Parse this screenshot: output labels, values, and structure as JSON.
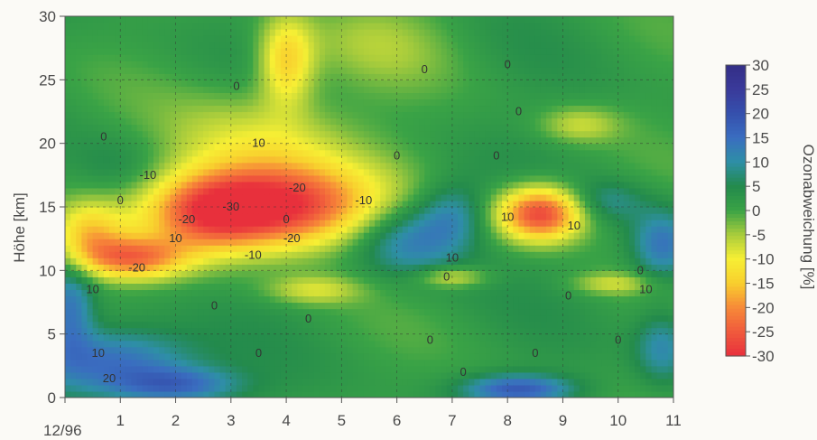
{
  "chart_data": {
    "type": "heatmap",
    "ylabel": "Höhe [km]",
    "colorbar_label": "Ozonabweichung [%]",
    "x_ticks": [
      "12/96",
      "1",
      "2",
      "3",
      "4",
      "5",
      "6",
      "7",
      "8",
      "9",
      "10",
      "11"
    ],
    "y_ticks": [
      "0",
      "5",
      "10",
      "15",
      "20",
      "25",
      "30"
    ],
    "colorbar_ticks": [
      "30",
      "25",
      "20",
      "15",
      "10",
      "5",
      "0",
      "-5",
      "-10",
      "-15",
      "-20",
      "-25",
      "-30"
    ],
    "xlim": [
      0,
      11
    ],
    "ylim": [
      0,
      30
    ],
    "colorbar_range": [
      -30,
      30
    ],
    "grid": true,
    "colormap": [
      {
        "value": -30,
        "color": "#e8303c"
      },
      {
        "value": -25,
        "color": "#f05a3c"
      },
      {
        "value": -20,
        "color": "#f78a38"
      },
      {
        "value": -15,
        "color": "#f8cf2e"
      },
      {
        "value": -10,
        "color": "#f7ef34"
      },
      {
        "value": -5,
        "color": "#a8cc3c"
      },
      {
        "value": 0,
        "color": "#3aa346"
      },
      {
        "value": 5,
        "color": "#238a4c"
      },
      {
        "value": 10,
        "color": "#2e8fa6"
      },
      {
        "value": 15,
        "color": "#3a6dc0"
      },
      {
        "value": 20,
        "color": "#3550ad"
      },
      {
        "value": 25,
        "color": "#3a3a9a"
      },
      {
        "value": 30,
        "color": "#332f86"
      }
    ],
    "anomalies": [
      {
        "x": 3.7,
        "y": 15.0,
        "sx": 1.3,
        "sy": 2.3,
        "v": -34
      },
      {
        "x": 2.6,
        "y": 14.5,
        "sx": 0.7,
        "sy": 2.0,
        "v": -12
      },
      {
        "x": 3.5,
        "y": 20.0,
        "sx": 1.2,
        "sy": 2.8,
        "v": -10
      },
      {
        "x": 4.0,
        "y": 26.5,
        "sx": 0.35,
        "sy": 2.5,
        "v": -16
      },
      {
        "x": 1.2,
        "y": 11.0,
        "sx": 0.7,
        "sy": 1.2,
        "v": -22
      },
      {
        "x": 0.4,
        "y": 13.0,
        "sx": 0.45,
        "sy": 1.7,
        "v": -14
      },
      {
        "x": 8.6,
        "y": 14.5,
        "sx": 0.55,
        "sy": 1.5,
        "v": -30
      },
      {
        "x": 9.3,
        "y": 21.5,
        "sx": 0.5,
        "sy": 1.0,
        "v": -8
      },
      {
        "x": 7.0,
        "y": 9.5,
        "sx": 0.45,
        "sy": 0.6,
        "v": -10
      },
      {
        "x": 9.9,
        "y": 9.0,
        "sx": 0.5,
        "sy": 0.6,
        "v": -8
      },
      {
        "x": 4.5,
        "y": 8.5,
        "sx": 0.6,
        "sy": 0.8,
        "v": -9
      },
      {
        "x": 6.2,
        "y": 12.5,
        "sx": 0.7,
        "sy": 2.0,
        "v": 13
      },
      {
        "x": 7.0,
        "y": 14.5,
        "sx": 0.45,
        "sy": 1.8,
        "v": 9
      },
      {
        "x": 0.9,
        "y": 3.0,
        "sx": 1.0,
        "sy": 1.8,
        "v": 15
      },
      {
        "x": 2.0,
        "y": 1.0,
        "sx": 0.8,
        "sy": 1.0,
        "v": 14
      },
      {
        "x": 0.1,
        "y": 7.0,
        "sx": 0.3,
        "sy": 2.5,
        "v": 12
      },
      {
        "x": 8.2,
        "y": 0.7,
        "sx": 0.7,
        "sy": 0.8,
        "v": 16
      },
      {
        "x": 10.8,
        "y": 12.0,
        "sx": 0.4,
        "sy": 2.0,
        "v": 13
      },
      {
        "x": 10.8,
        "y": 4.0,
        "sx": 0.35,
        "sy": 2.0,
        "v": 10
      },
      {
        "x": 9.8,
        "y": 15.5,
        "sx": 0.5,
        "sy": 1.2,
        "v": 7
      },
      {
        "x": 5.6,
        "y": 28.0,
        "sx": 1.0,
        "sy": 2.5,
        "v": -5
      },
      {
        "x": 1.0,
        "y": 18.0,
        "sx": 0.6,
        "sy": 2.0,
        "v": 5
      }
    ],
    "contour_labels": [
      {
        "text": "10",
        "x": 3.5,
        "y": 20.0
      },
      {
        "text": "-10",
        "x": 1.5,
        "y": 17.5
      },
      {
        "text": "-20",
        "x": 4.2,
        "y": 16.5
      },
      {
        "text": "-30",
        "x": 3.0,
        "y": 15.0
      },
      {
        "text": "-20",
        "x": 2.2,
        "y": 14.0
      },
      {
        "text": "10",
        "x": 2.0,
        "y": 12.5
      },
      {
        "text": "-20",
        "x": 4.1,
        "y": 12.5
      },
      {
        "text": "-10",
        "x": 3.4,
        "y": 11.2
      },
      {
        "text": "-10",
        "x": 5.4,
        "y": 15.5
      },
      {
        "text": "-20",
        "x": 1.3,
        "y": 10.2
      },
      {
        "text": "10",
        "x": 0.5,
        "y": 8.5
      },
      {
        "text": "0",
        "x": 0.7,
        "y": 20.5
      },
      {
        "text": "10",
        "x": 0.6,
        "y": 3.5
      },
      {
        "text": "20",
        "x": 0.8,
        "y": 1.5
      },
      {
        "text": "0",
        "x": 1.0,
        "y": 15.5
      },
      {
        "text": "10",
        "x": 7.0,
        "y": 11.0
      },
      {
        "text": "0",
        "x": 6.9,
        "y": 9.5
      },
      {
        "text": "0",
        "x": 4.4,
        "y": 6.2
      },
      {
        "text": "0",
        "x": 2.7,
        "y": 7.2
      },
      {
        "text": "0",
        "x": 3.5,
        "y": 3.5
      },
      {
        "text": "0",
        "x": 6.6,
        "y": 4.5
      },
      {
        "text": "0",
        "x": 7.2,
        "y": 2.0
      },
      {
        "text": "0",
        "x": 8.5,
        "y": 3.5
      },
      {
        "text": "0",
        "x": 10.0,
        "y": 4.5
      },
      {
        "text": "0",
        "x": 10.4,
        "y": 10.0
      },
      {
        "text": "0",
        "x": 9.1,
        "y": 8.0
      },
      {
        "text": "10",
        "x": 8.0,
        "y": 14.2
      },
      {
        "text": "10",
        "x": 9.2,
        "y": 13.5
      },
      {
        "text": "0",
        "x": 6.0,
        "y": 19.0
      },
      {
        "text": "0",
        "x": 7.8,
        "y": 19.0
      },
      {
        "text": "0",
        "x": 6.5,
        "y": 25.8
      },
      {
        "text": "0",
        "x": 8.0,
        "y": 26.2
      },
      {
        "text": "0",
        "x": 3.1,
        "y": 24.5
      },
      {
        "text": "0",
        "x": 4.0,
        "y": 14.0
      },
      {
        "text": "10",
        "x": 10.5,
        "y": 8.5
      },
      {
        "text": "0",
        "x": 8.2,
        "y": 22.5
      }
    ]
  }
}
